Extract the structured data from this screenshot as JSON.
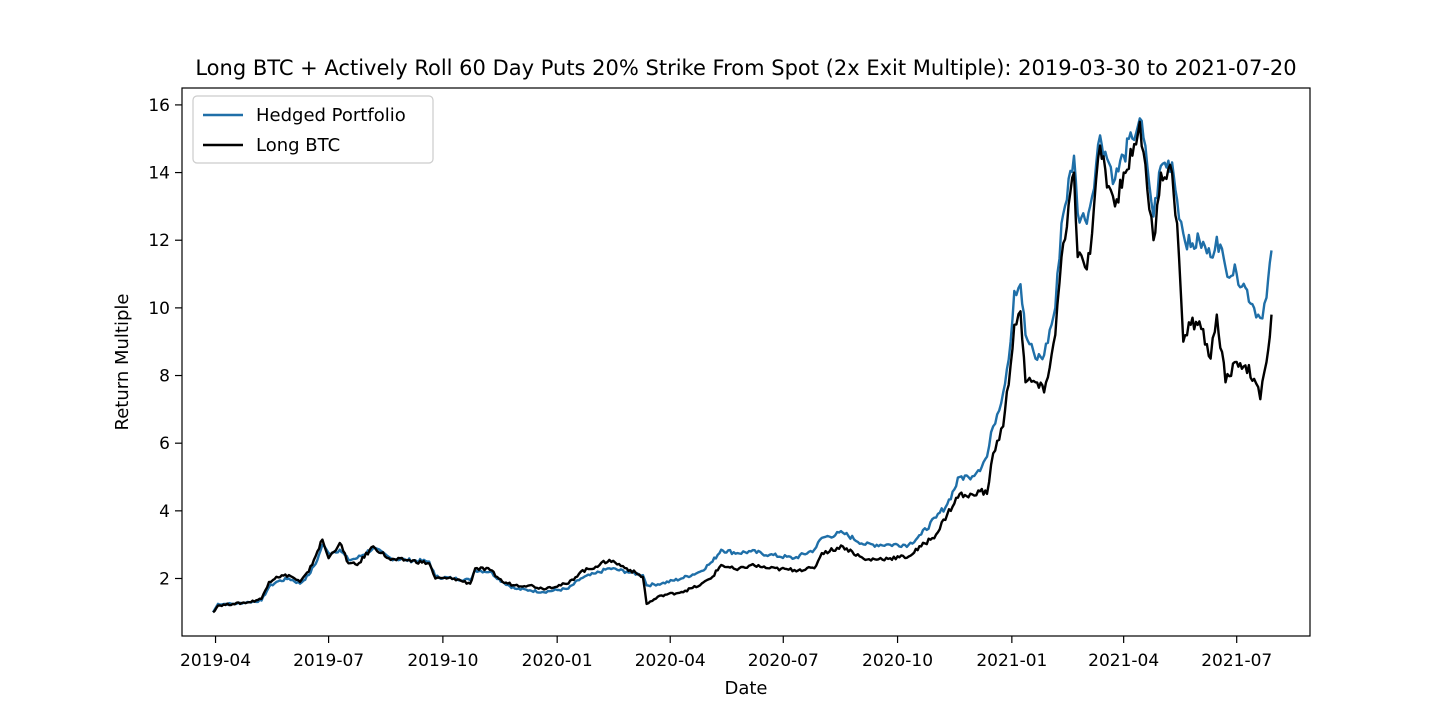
{
  "chart_data": {
    "type": "line",
    "title": "Long BTC + Actively Roll 60 Day Puts 20% Strike From Spot (2x Exit Multiple): 2019-03-30 to 2021-07-20",
    "xlabel": "Date",
    "ylabel": "Return Multiple",
    "x_ticks": [
      "2019-04",
      "2019-07",
      "2019-10",
      "2020-01",
      "2020-04",
      "2020-07",
      "2020-10",
      "2021-01",
      "2021-04",
      "2021-07"
    ],
    "y_ticks": [
      2,
      4,
      6,
      8,
      10,
      12,
      14,
      16
    ],
    "ylim": [
      0.3,
      16.5
    ],
    "xlim": [
      "2019-03-05",
      "2021-08-29"
    ],
    "grid": false,
    "legend_position": "top-left",
    "series": [
      {
        "name": "Hedged Portfolio",
        "color": "#1f6fa8",
        "points": [
          [
            "2019-03-30",
            1.0
          ],
          [
            "2019-04-03",
            1.25
          ],
          [
            "2019-04-15",
            1.25
          ],
          [
            "2019-04-28",
            1.3
          ],
          [
            "2019-05-08",
            1.35
          ],
          [
            "2019-05-14",
            1.75
          ],
          [
            "2019-05-20",
            1.9
          ],
          [
            "2019-05-30",
            2.0
          ],
          [
            "2019-06-08",
            1.85
          ],
          [
            "2019-06-15",
            2.1
          ],
          [
            "2019-06-22",
            2.55
          ],
          [
            "2019-06-26",
            3.0
          ],
          [
            "2019-07-01",
            2.75
          ],
          [
            "2019-07-10",
            2.85
          ],
          [
            "2019-07-17",
            2.55
          ],
          [
            "2019-07-24",
            2.6
          ],
          [
            "2019-08-06",
            2.9
          ],
          [
            "2019-08-20",
            2.6
          ],
          [
            "2019-09-01",
            2.55
          ],
          [
            "2019-09-20",
            2.5
          ],
          [
            "2019-09-25",
            2.05
          ],
          [
            "2019-10-10",
            2.0
          ],
          [
            "2019-10-23",
            1.95
          ],
          [
            "2019-10-27",
            2.25
          ],
          [
            "2019-11-08",
            2.2
          ],
          [
            "2019-11-18",
            1.9
          ],
          [
            "2019-11-28",
            1.7
          ],
          [
            "2019-12-10",
            1.65
          ],
          [
            "2019-12-20",
            1.6
          ],
          [
            "2020-01-10",
            1.7
          ],
          [
            "2020-01-20",
            2.0
          ],
          [
            "2020-02-01",
            2.15
          ],
          [
            "2020-02-12",
            2.3
          ],
          [
            "2020-02-26",
            2.2
          ],
          [
            "2020-03-10",
            2.1
          ],
          [
            "2020-03-13",
            1.8
          ],
          [
            "2020-03-25",
            1.85
          ],
          [
            "2020-04-10",
            2.0
          ],
          [
            "2020-04-25",
            2.2
          ],
          [
            "2020-05-05",
            2.5
          ],
          [
            "2020-05-12",
            2.85
          ],
          [
            "2020-05-25",
            2.75
          ],
          [
            "2020-06-05",
            2.8
          ],
          [
            "2020-06-20",
            2.7
          ],
          [
            "2020-07-10",
            2.6
          ],
          [
            "2020-07-26",
            2.85
          ],
          [
            "2020-08-01",
            3.2
          ],
          [
            "2020-08-18",
            3.35
          ],
          [
            "2020-09-05",
            3.0
          ],
          [
            "2020-09-25",
            3.0
          ],
          [
            "2020-10-10",
            3.0
          ],
          [
            "2020-10-20",
            3.3
          ],
          [
            "2020-11-01",
            3.8
          ],
          [
            "2020-11-10",
            4.2
          ],
          [
            "2020-11-20",
            5.0
          ],
          [
            "2020-11-27",
            5.0
          ],
          [
            "2020-12-05",
            5.2
          ],
          [
            "2020-12-12",
            5.6
          ],
          [
            "2020-12-17",
            6.5
          ],
          [
            "2020-12-25",
            7.5
          ],
          [
            "2020-12-31",
            9.0
          ],
          [
            "2021-01-03",
            10.5
          ],
          [
            "2021-01-08",
            10.7
          ],
          [
            "2021-01-12",
            9.2
          ],
          [
            "2021-01-20",
            8.5
          ],
          [
            "2021-01-27",
            8.6
          ],
          [
            "2021-02-05",
            10.0
          ],
          [
            "2021-02-10",
            12.5
          ],
          [
            "2021-02-20",
            14.5
          ],
          [
            "2021-02-23",
            12.8
          ],
          [
            "2021-03-01",
            12.6
          ],
          [
            "2021-03-05",
            13.0
          ],
          [
            "2021-03-13",
            15.1
          ],
          [
            "2021-03-20",
            14.3
          ],
          [
            "2021-03-25",
            13.8
          ],
          [
            "2021-04-01",
            14.5
          ],
          [
            "2021-04-08",
            15.0
          ],
          [
            "2021-04-14",
            15.6
          ],
          [
            "2021-04-20",
            14.2
          ],
          [
            "2021-04-25",
            12.7
          ],
          [
            "2021-05-01",
            14.2
          ],
          [
            "2021-05-10",
            14.3
          ],
          [
            "2021-05-14",
            13.2
          ],
          [
            "2021-05-19",
            12.2
          ],
          [
            "2021-05-25",
            11.8
          ],
          [
            "2021-06-01",
            12.0
          ],
          [
            "2021-06-10",
            11.5
          ],
          [
            "2021-06-15",
            12.1
          ],
          [
            "2021-06-22",
            11.2
          ],
          [
            "2021-07-01",
            11.0
          ],
          [
            "2021-07-08",
            10.6
          ],
          [
            "2021-07-15",
            10.0
          ],
          [
            "2021-07-20",
            9.7
          ],
          [
            "2021-07-25",
            10.3
          ],
          [
            "2021-07-29",
            11.7
          ]
        ]
      },
      {
        "name": "Long BTC",
        "color": "#000000",
        "points": [
          [
            "2019-03-30",
            1.0
          ],
          [
            "2019-04-03",
            1.2
          ],
          [
            "2019-04-15",
            1.25
          ],
          [
            "2019-04-28",
            1.3
          ],
          [
            "2019-05-08",
            1.4
          ],
          [
            "2019-05-14",
            1.9
          ],
          [
            "2019-05-20",
            2.05
          ],
          [
            "2019-05-30",
            2.1
          ],
          [
            "2019-06-08",
            1.9
          ],
          [
            "2019-06-15",
            2.2
          ],
          [
            "2019-06-22",
            2.8
          ],
          [
            "2019-06-26",
            3.15
          ],
          [
            "2019-07-01",
            2.6
          ],
          [
            "2019-07-10",
            3.05
          ],
          [
            "2019-07-17",
            2.45
          ],
          [
            "2019-07-24",
            2.4
          ],
          [
            "2019-08-06",
            2.95
          ],
          [
            "2019-08-20",
            2.55
          ],
          [
            "2019-09-01",
            2.55
          ],
          [
            "2019-09-20",
            2.45
          ],
          [
            "2019-09-25",
            2.0
          ],
          [
            "2019-10-10",
            2.0
          ],
          [
            "2019-10-23",
            1.85
          ],
          [
            "2019-10-27",
            2.3
          ],
          [
            "2019-11-08",
            2.25
          ],
          [
            "2019-11-18",
            1.9
          ],
          [
            "2019-11-28",
            1.8
          ],
          [
            "2019-12-10",
            1.8
          ],
          [
            "2019-12-20",
            1.7
          ],
          [
            "2020-01-10",
            1.85
          ],
          [
            "2020-01-20",
            2.2
          ],
          [
            "2020-02-01",
            2.35
          ],
          [
            "2020-02-12",
            2.55
          ],
          [
            "2020-02-26",
            2.3
          ],
          [
            "2020-03-10",
            2.05
          ],
          [
            "2020-03-13",
            1.25
          ],
          [
            "2020-03-25",
            1.5
          ],
          [
            "2020-04-10",
            1.6
          ],
          [
            "2020-04-25",
            1.8
          ],
          [
            "2020-05-05",
            2.05
          ],
          [
            "2020-05-12",
            2.4
          ],
          [
            "2020-05-25",
            2.25
          ],
          [
            "2020-06-05",
            2.4
          ],
          [
            "2020-06-20",
            2.3
          ],
          [
            "2020-07-10",
            2.25
          ],
          [
            "2020-07-26",
            2.3
          ],
          [
            "2020-08-01",
            2.75
          ],
          [
            "2020-08-18",
            2.95
          ],
          [
            "2020-09-05",
            2.55
          ],
          [
            "2020-09-25",
            2.6
          ],
          [
            "2020-10-10",
            2.65
          ],
          [
            "2020-10-20",
            2.95
          ],
          [
            "2020-11-01",
            3.3
          ],
          [
            "2020-11-10",
            3.9
          ],
          [
            "2020-11-20",
            4.5
          ],
          [
            "2020-11-27",
            4.4
          ],
          [
            "2020-12-05",
            4.6
          ],
          [
            "2020-12-12",
            4.5
          ],
          [
            "2020-12-17",
            5.7
          ],
          [
            "2020-12-25",
            6.5
          ],
          [
            "2020-12-31",
            8.3
          ],
          [
            "2021-01-03",
            9.5
          ],
          [
            "2021-01-08",
            9.9
          ],
          [
            "2021-01-12",
            7.8
          ],
          [
            "2021-01-20",
            7.8
          ],
          [
            "2021-01-27",
            7.5
          ],
          [
            "2021-02-05",
            9.2
          ],
          [
            "2021-02-10",
            11.5
          ],
          [
            "2021-02-20",
            14.0
          ],
          [
            "2021-02-23",
            11.5
          ],
          [
            "2021-03-01",
            11.2
          ],
          [
            "2021-03-05",
            11.6
          ],
          [
            "2021-03-13",
            14.8
          ],
          [
            "2021-03-20",
            13.6
          ],
          [
            "2021-03-25",
            13.0
          ],
          [
            "2021-04-01",
            14.0
          ],
          [
            "2021-04-08",
            14.5
          ],
          [
            "2021-04-14",
            15.5
          ],
          [
            "2021-04-20",
            13.5
          ],
          [
            "2021-04-25",
            12.0
          ],
          [
            "2021-05-01",
            14.0
          ],
          [
            "2021-05-10",
            14.0
          ],
          [
            "2021-05-14",
            12.5
          ],
          [
            "2021-05-19",
            9.0
          ],
          [
            "2021-05-25",
            9.5
          ],
          [
            "2021-06-01",
            9.6
          ],
          [
            "2021-06-10",
            8.5
          ],
          [
            "2021-06-15",
            9.8
          ],
          [
            "2021-06-22",
            7.8
          ],
          [
            "2021-07-01",
            8.4
          ],
          [
            "2021-07-08",
            8.3
          ],
          [
            "2021-07-15",
            7.9
          ],
          [
            "2021-07-20",
            7.3
          ],
          [
            "2021-07-25",
            8.4
          ],
          [
            "2021-07-29",
            9.8
          ]
        ]
      }
    ]
  }
}
